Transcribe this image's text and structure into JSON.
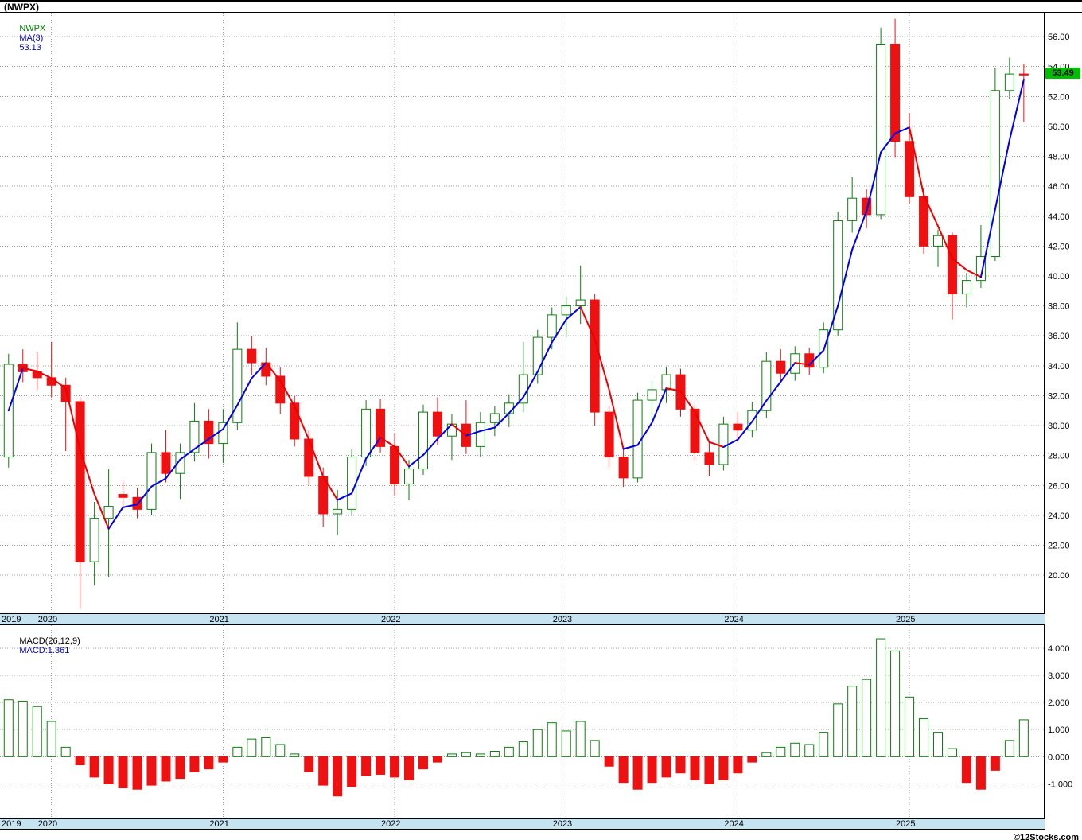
{
  "window": {
    "title": "(NWPX)"
  },
  "colors": {
    "up": "#0a800a",
    "down": "#ee1111",
    "ma_up": "#0000ee",
    "ma_down": "#ee0000",
    "grid": "#9c9c9c",
    "band_bg": "#c6e3f2",
    "tag_bg": "#00bf00",
    "tag_text": "#000000",
    "legend_symbol": "#008000",
    "legend_value": "#0000cc",
    "macd_label": "#000000",
    "macd_value": "#0000cc"
  },
  "main_chart": {
    "legend": {
      "symbol": "NWPX",
      "ma_label": "MA(3)",
      "ma_value": "53.13"
    },
    "price_tag": "53.49"
  },
  "macd_chart": {
    "legend": {
      "label": "MACD(26,12,9)",
      "value_label": "MACD:1.361"
    }
  },
  "footer": {
    "copyright": "©12Stocks.com"
  },
  "chart_data": [
    {
      "type": "candlestick",
      "symbol": "NWPX",
      "interval": "monthly",
      "legend_position": "top-left",
      "grid": true,
      "last_price": 53.49,
      "y_axis": {
        "min": 17.4,
        "max": 57.6,
        "tick_min": 20,
        "tick_max": 56,
        "tick_step": 2
      },
      "overlays": [
        {
          "name": "MA(3)",
          "kind": "sma",
          "period": 3,
          "last_value": 53.13
        }
      ],
      "candles": [
        [
          "2019-10",
          27.9,
          34.8,
          27.2,
          34.1
        ],
        [
          "2019-11",
          34.1,
          35.1,
          32.9,
          33.6
        ],
        [
          "2019-12",
          33.6,
          34.9,
          32.4,
          33.2
        ],
        [
          "2020-01",
          33.2,
          35.6,
          31.9,
          32.7
        ],
        [
          "2020-02",
          32.7,
          33.2,
          28.3,
          31.6
        ],
        [
          "2020-03",
          31.6,
          31.9,
          17.8,
          20.9
        ],
        [
          "2020-04",
          20.9,
          24.9,
          19.3,
          23.8
        ],
        [
          "2020-05",
          23.8,
          27.1,
          19.9,
          24.6
        ],
        [
          "2020-06",
          25.4,
          26.3,
          24.4,
          25.2
        ],
        [
          "2020-07",
          25.2,
          25.8,
          23.8,
          24.4
        ],
        [
          "2020-08",
          24.4,
          28.8,
          24.0,
          28.2
        ],
        [
          "2020-09",
          28.2,
          29.7,
          26.2,
          26.8
        ],
        [
          "2020-10",
          26.8,
          28.8,
          25.1,
          28.2
        ],
        [
          "2020-11",
          28.2,
          31.5,
          27.6,
          30.3
        ],
        [
          "2020-12",
          30.3,
          31.1,
          27.8,
          28.8
        ],
        [
          "2021-01",
          28.8,
          31.1,
          27.5,
          30.2
        ],
        [
          "2021-02",
          30.2,
          36.9,
          29.7,
          35.1
        ],
        [
          "2021-03",
          35.1,
          36.0,
          33.4,
          34.2
        ],
        [
          "2021-04",
          34.2,
          35.2,
          32.7,
          33.3
        ],
        [
          "2021-05",
          33.3,
          33.9,
          30.8,
          31.5
        ],
        [
          "2021-06",
          31.5,
          32.0,
          28.6,
          29.1
        ],
        [
          "2021-07",
          29.1,
          29.7,
          26.0,
          26.6
        ],
        [
          "2021-08",
          26.6,
          27.2,
          23.2,
          24.1
        ],
        [
          "2021-09",
          24.1,
          25.7,
          22.7,
          24.4
        ],
        [
          "2021-10",
          24.4,
          28.4,
          24.0,
          27.9
        ],
        [
          "2021-11",
          27.9,
          31.7,
          27.3,
          31.1
        ],
        [
          "2021-12",
          31.1,
          31.8,
          28.2,
          28.6
        ],
        [
          "2022-01",
          28.6,
          29.5,
          25.3,
          26.1
        ],
        [
          "2022-02",
          26.1,
          27.7,
          25.0,
          27.1
        ],
        [
          "2022-03",
          27.1,
          31.4,
          26.7,
          30.9
        ],
        [
          "2022-04",
          30.9,
          31.9,
          28.7,
          29.3
        ],
        [
          "2022-05",
          29.3,
          30.8,
          27.7,
          30.1
        ],
        [
          "2022-06",
          30.1,
          31.7,
          28.1,
          28.6
        ],
        [
          "2022-07",
          28.6,
          30.9,
          27.9,
          30.2
        ],
        [
          "2022-08",
          30.2,
          31.3,
          29.3,
          30.8
        ],
        [
          "2022-09",
          30.8,
          32.1,
          29.9,
          31.5
        ],
        [
          "2022-10",
          31.5,
          35.6,
          30.9,
          33.4
        ],
        [
          "2022-11",
          33.4,
          36.4,
          32.8,
          35.9
        ],
        [
          "2022-12",
          35.9,
          37.9,
          35.1,
          37.4
        ],
        [
          "2023-01",
          37.4,
          38.6,
          35.9,
          38.0
        ],
        [
          "2023-02",
          38.0,
          40.7,
          36.8,
          38.4
        ],
        [
          "2023-03",
          38.4,
          38.8,
          30.0,
          30.9
        ],
        [
          "2023-04",
          30.9,
          31.3,
          27.2,
          27.9
        ],
        [
          "2023-05",
          27.9,
          28.6,
          25.9,
          26.5
        ],
        [
          "2023-06",
          26.5,
          32.2,
          26.2,
          31.7
        ],
        [
          "2023-07",
          31.7,
          33.0,
          30.1,
          32.4
        ],
        [
          "2023-08",
          32.4,
          33.9,
          31.5,
          33.4
        ],
        [
          "2023-09",
          33.4,
          33.8,
          30.6,
          31.1
        ],
        [
          "2023-10",
          31.1,
          31.4,
          27.6,
          28.2
        ],
        [
          "2023-11",
          28.2,
          28.9,
          26.6,
          27.4
        ],
        [
          "2023-12",
          27.4,
          30.6,
          27.0,
          30.1
        ],
        [
          "2024-01",
          30.1,
          30.9,
          29.0,
          29.7
        ],
        [
          "2024-02",
          29.7,
          31.6,
          29.2,
          31.0
        ],
        [
          "2024-03",
          31.0,
          34.9,
          30.5,
          34.3
        ],
        [
          "2024-04",
          34.3,
          35.1,
          32.9,
          33.5
        ],
        [
          "2024-05",
          33.5,
          35.3,
          33.0,
          34.8
        ],
        [
          "2024-06",
          34.8,
          35.2,
          33.4,
          33.9
        ],
        [
          "2024-07",
          33.9,
          36.9,
          33.5,
          36.4
        ],
        [
          "2024-08",
          36.4,
          44.3,
          36.0,
          43.7
        ],
        [
          "2024-09",
          43.7,
          46.6,
          42.9,
          45.2
        ],
        [
          "2024-10",
          45.2,
          45.8,
          43.2,
          44.1
        ],
        [
          "2024-11",
          44.1,
          56.6,
          43.8,
          55.5
        ],
        [
          "2024-12",
          55.5,
          57.2,
          47.9,
          49.0
        ],
        [
          "2025-01",
          49.0,
          50.9,
          44.8,
          45.3
        ],
        [
          "2025-02",
          45.3,
          45.9,
          41.5,
          42.0
        ],
        [
          "2025-03",
          42.0,
          43.1,
          40.6,
          42.7
        ],
        [
          "2025-04",
          42.7,
          42.9,
          37.1,
          38.8
        ],
        [
          "2025-05",
          38.8,
          40.2,
          37.9,
          39.7
        ],
        [
          "2025-06",
          39.7,
          43.4,
          39.2,
          41.3
        ],
        [
          "2025-07",
          41.3,
          53.9,
          41.0,
          52.4
        ],
        [
          "2025-08",
          52.4,
          54.6,
          51.8,
          53.5
        ],
        [
          "2025-09",
          53.5,
          54.2,
          50.3,
          53.49
        ]
      ]
    },
    {
      "type": "bar",
      "name": "MACD(26,12,9)",
      "grid": true,
      "last_value": 1.361,
      "y_axis": {
        "min": -2.25,
        "max": 4.85,
        "ticks": [
          4,
          3,
          2,
          1,
          0,
          -1
        ]
      },
      "values": [
        2.1,
        2.05,
        1.85,
        1.3,
        0.35,
        -0.3,
        -0.75,
        -1.0,
        -1.15,
        -1.2,
        -1.05,
        -0.9,
        -0.8,
        -0.55,
        -0.45,
        -0.2,
        0.35,
        0.65,
        0.7,
        0.45,
        0.1,
        -0.55,
        -1.05,
        -1.45,
        -1.1,
        -0.7,
        -0.65,
        -0.75,
        -0.85,
        -0.45,
        -0.2,
        0.1,
        0.15,
        0.1,
        0.2,
        0.35,
        0.55,
        1.0,
        1.25,
        0.95,
        1.3,
        0.6,
        -0.35,
        -0.95,
        -1.2,
        -0.95,
        -0.75,
        -0.6,
        -0.85,
        -1.0,
        -0.85,
        -0.6,
        -0.2,
        0.15,
        0.35,
        0.5,
        0.45,
        0.9,
        1.95,
        2.6,
        2.85,
        4.35,
        3.9,
        2.2,
        1.4,
        0.9,
        0.3,
        -0.95,
        -1.2,
        -0.5,
        0.6,
        1.361
      ]
    }
  ]
}
